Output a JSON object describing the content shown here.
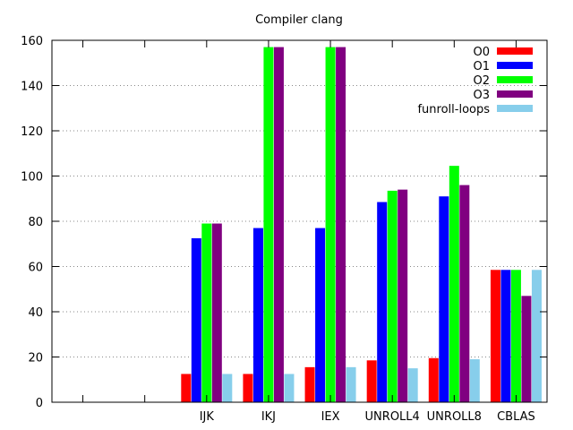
{
  "chart_data": {
    "type": "bar",
    "title": "Compiler clang",
    "xlabel": "",
    "ylabel": "",
    "ylim": [
      0,
      160
    ],
    "yticks": [
      0,
      20,
      40,
      60,
      80,
      100,
      120,
      140,
      160
    ],
    "grid": "y-dotted",
    "legend_position": "top-right",
    "categories": [
      "",
      "",
      "IJK",
      "IKJ",
      "IEX",
      "UNROLL4",
      "UNROLL8",
      "CBLAS"
    ],
    "series": [
      {
        "name": "O0",
        "color": "#ff0000",
        "values": [
          null,
          null,
          12.5,
          12.5,
          15.5,
          18.5,
          19.5,
          58.5
        ]
      },
      {
        "name": "O1",
        "color": "#0000ff",
        "values": [
          null,
          null,
          72.5,
          77,
          77,
          88.5,
          91,
          58.5
        ]
      },
      {
        "name": "O2",
        "color": "#00ff00",
        "values": [
          null,
          null,
          79,
          157,
          157,
          93.5,
          104.5,
          58.5
        ]
      },
      {
        "name": "O3",
        "color": "#800080",
        "values": [
          null,
          null,
          79,
          157,
          157,
          94,
          96,
          47
        ]
      },
      {
        "name": "funroll-loops",
        "color": "#87ceeb",
        "values": [
          null,
          null,
          12.5,
          12.5,
          15.5,
          15,
          19,
          58.5
        ]
      }
    ]
  }
}
